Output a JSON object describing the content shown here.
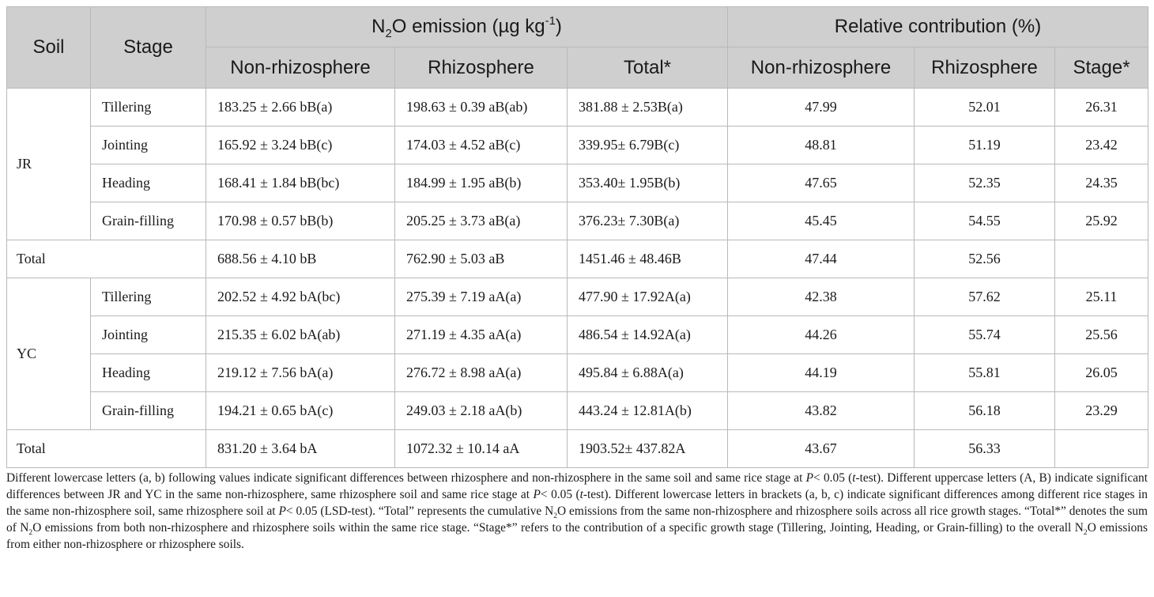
{
  "header": {
    "soil": "Soil",
    "stage": "Stage",
    "emission_group_prefix": "N",
    "emission_group_sub": "2",
    "emission_group_middle": "O emission (µg kg",
    "emission_group_sup": "-1",
    "emission_group_suffix": ")",
    "relative_group": "Relative contribution (%)",
    "columns": [
      "Non-rhizosphere",
      "Rhizosphere",
      "Total*",
      "Non-rhizosphere",
      "Rhizosphere",
      "Stage*"
    ]
  },
  "rows": [
    {
      "soil": "JR",
      "stage": "Tillering",
      "non_rhizo": "183.25 ± 2.66 bB(a)",
      "rhizo": "198.63 ± 0.39 aB(ab)",
      "total": "381.88 ± 2.53B(a)",
      "rc_non": "47.99",
      "rc_rhizo": "52.01",
      "rc_stage": "26.31"
    },
    {
      "soil": "JR",
      "stage": "Jointing",
      "non_rhizo": "165.92 ± 3.24 bB(c)",
      "rhizo": "174.03 ± 4.52 aB(c)",
      "total": "339.95± 6.79B(c)",
      "rc_non": "48.81",
      "rc_rhizo": "51.19",
      "rc_stage": "23.42"
    },
    {
      "soil": "JR",
      "stage": "Heading",
      "non_rhizo": "168.41 ± 1.84 bB(bc)",
      "rhizo": "184.99 ± 1.95 aB(b)",
      "total": "353.40± 1.95B(b)",
      "rc_non": "47.65",
      "rc_rhizo": "52.35",
      "rc_stage": "24.35"
    },
    {
      "soil": "JR",
      "stage": "Grain-filling",
      "non_rhizo": "170.98 ± 0.57 bB(b)",
      "rhizo": "205.25 ± 3.73 aB(a)",
      "total": "376.23± 7.30B(a)",
      "rc_non": "45.45",
      "rc_rhizo": "54.55",
      "rc_stage": "25.92"
    },
    {
      "soil": "Total",
      "stage": "",
      "non_rhizo": "688.56 ± 4.10 bB",
      "rhizo": "762.90 ± 5.03 aB",
      "total": "1451.46 ± 48.46B",
      "rc_non": "47.44",
      "rc_rhizo": "52.56",
      "rc_stage": ""
    },
    {
      "soil": "YC",
      "stage": "Tillering",
      "non_rhizo": "202.52 ± 4.92 bA(bc)",
      "rhizo": "275.39 ± 7.19 aA(a)",
      "total": "477.90 ± 17.92A(a)",
      "rc_non": "42.38",
      "rc_rhizo": "57.62",
      "rc_stage": "25.11"
    },
    {
      "soil": "YC",
      "stage": "Jointing",
      "non_rhizo": "215.35 ± 6.02 bA(ab)",
      "rhizo": "271.19 ± 4.35 aA(a)",
      "total": "486.54 ± 14.92A(a)",
      "rc_non": "44.26",
      "rc_rhizo": "55.74",
      "rc_stage": "25.56"
    },
    {
      "soil": "YC",
      "stage": "Heading",
      "non_rhizo": "219.12 ± 7.56 bA(a)",
      "rhizo": "276.72 ± 8.98 aA(a)",
      "total": "495.84 ± 6.88A(a)",
      "rc_non": "44.19",
      "rc_rhizo": "55.81",
      "rc_stage": "26.05"
    },
    {
      "soil": "YC",
      "stage": "Grain-filling",
      "non_rhizo": "194.21 ± 0.65 bA(c)",
      "rhizo": "249.03 ± 2.18 aA(b)",
      "total": "443.24 ± 12.81A(b)",
      "rc_non": "43.82",
      "rc_rhizo": "56.18",
      "rc_stage": "23.29"
    },
    {
      "soil": "Total",
      "stage": "",
      "non_rhizo": "831.20 ± 3.64 bA",
      "rhizo": "1072.32 ± 10.14 aA",
      "total": "1903.52± 437.82A",
      "rc_non": "43.67",
      "rc_rhizo": "56.33",
      "rc_stage": ""
    }
  ],
  "footnote": {
    "p1": "Different lowercase letters (a, b) following values indicate significant differences between rhizosphere and non-rhizosphere in the same soil and same rice stage at ",
    "p1_P": "P",
    "p1_b": "< 0.05 (",
    "p1_t": "t",
    "p1_c": "-test). Different uppercase letters (A, B) indicate significant differences between JR and YC in the same non-rhizosphere, same rhizosphere soil and same rice stage at ",
    "p2_P": "P",
    "p2_b": "< 0.05 (",
    "p2_t": "t",
    "p2_c": "-test). Different lowercase letters in brackets (a, b, c) indicate significant differences among different rice stages in the same non-rhizosphere soil, same rhizosphere soil at ",
    "p3_P": "P",
    "p3_b": "< 0.05 (LSD-test). “Total” represents the cumulative N",
    "sub2": "2",
    "p3_c": "O emissions from the same non-rhizosphere and rhizosphere soils across all rice growth stages. “Total*” denotes the sum of N",
    "p4_c": "O emissions from both non-rhizosphere and rhizosphere soils within the same rice stage. “Stage*” refers to the contribution of a specific growth stage (Tillering, Jointing, Heading, or Grain-filling) to the overall N",
    "p5_c": "O emissions from either non-rhizosphere or rhizosphere soils."
  }
}
